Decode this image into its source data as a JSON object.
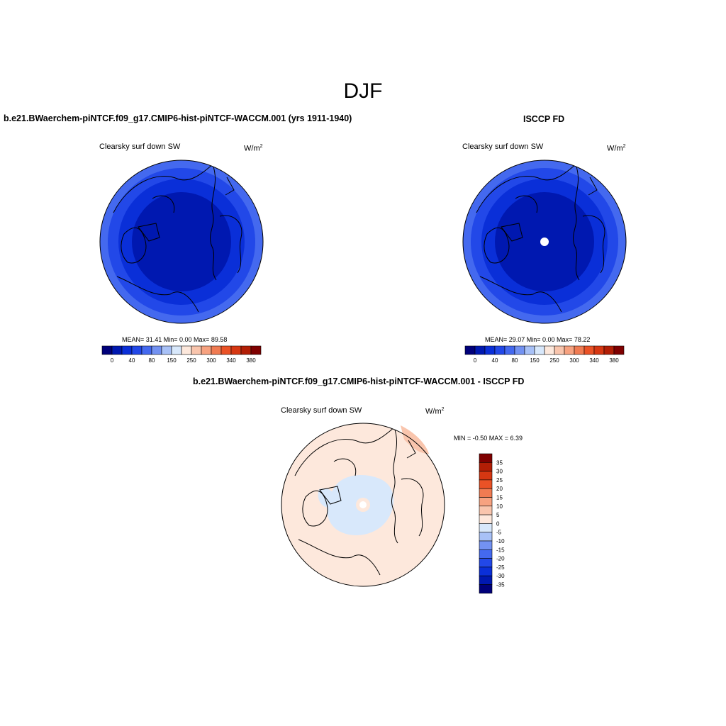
{
  "page": {
    "season": "DJF"
  },
  "panels": {
    "model": {
      "title": "b.e21.BWaerchem-piNTCF.f09_g17.CMIP6-hist-piNTCF-WACCM.001 (yrs 1911-1940)",
      "variable": "Clearsky surf down SW",
      "units": "W/m",
      "units_exp": "2",
      "stats": "MEAN=  31.41  Min=   0.00  Max=  89.58"
    },
    "obs": {
      "title": "ISCCP FD",
      "variable": "Clearsky surf down SW",
      "units": "W/m",
      "units_exp": "2",
      "stats": "MEAN=  29.07  Min=   0.00  Max=  78.22"
    },
    "diff": {
      "title": "b.e21.BWaerchem-piNTCF.f09_g17.CMIP6-hist-piNTCF-WACCM.001 - ISCCP FD",
      "variable": "Clearsky surf down SW",
      "units": "W/m",
      "units_exp": "2",
      "stats": "MIN =  -0.50 MAX =   6.39"
    }
  },
  "colorbars": {
    "abs_colors": [
      "#00007a",
      "#0018b0",
      "#0a2fd8",
      "#2248e8",
      "#4469ef",
      "#7392f2",
      "#a8c1f7",
      "#d8e8fb",
      "#fde8dc",
      "#f9c5ad",
      "#f7a280",
      "#f07b52",
      "#ea5226",
      "#d63712",
      "#b21e05",
      "#7f0000"
    ],
    "abs_labels": [
      "0",
      "40",
      "80",
      "150",
      "250",
      "300",
      "340",
      "380"
    ],
    "diff_colors": [
      "#7f0000",
      "#b21e05",
      "#d63712",
      "#ea5226",
      "#f07b52",
      "#f7a280",
      "#f9c5ad",
      "#fde8dc",
      "#d8e8fb",
      "#a8c1f7",
      "#7392f2",
      "#4469ef",
      "#2248e8",
      "#0a2fd8",
      "#0018b0",
      "#00007a"
    ],
    "diff_labels": [
      "35",
      "30",
      "25",
      "20",
      "15",
      "10",
      "5",
      "0",
      "-5",
      "-10",
      "-15",
      "-20",
      "-25",
      "-30",
      "-35"
    ]
  },
  "map_colors": {
    "ring_outer": "#4469ef",
    "ring_mid": "#2248e8",
    "ring_inner": "#0a2fd8",
    "core": "#0018b0",
    "diff_background": "#fde8dc",
    "diff_negative": "#d8e8fb",
    "diff_positive": "#f9c5ad"
  }
}
